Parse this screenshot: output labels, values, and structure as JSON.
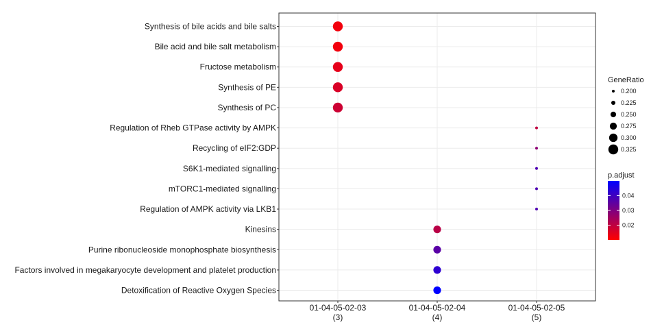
{
  "chart_data": {
    "type": "scatter",
    "title": "",
    "xlabel": "",
    "ylabel": "",
    "categories_x": [
      {
        "line1": "01-04-05-02-03",
        "line2": "(3)"
      },
      {
        "line1": "01-04-05-02-04",
        "line2": "(4)"
      },
      {
        "line1": "01-04-05-02-05",
        "line2": "(5)"
      }
    ],
    "categories_y": [
      "Synthesis of bile acids and bile salts",
      "Bile acid and bile salt metabolism",
      "Fructose metabolism",
      "Synthesis of PE",
      "Synthesis of PC",
      "Regulation of Rheb GTPase activity by AMPK",
      "Recycling of eIF2:GDP",
      "S6K1-mediated signalling",
      "mTORC1-mediated signalling",
      "Regulation of AMPK activity via LKB1",
      "Kinesins",
      "Purine ribonucleoside monophosphate biosynthesis",
      "Factors involved in megakaryocyte development and platelet production",
      "Detoxification of Reactive Oxygen Species"
    ],
    "points": [
      {
        "x": 0,
        "y": 0,
        "gene_ratio": 0.333,
        "p_adjust": 0.012
      },
      {
        "x": 0,
        "y": 1,
        "gene_ratio": 0.333,
        "p_adjust": 0.012
      },
      {
        "x": 0,
        "y": 2,
        "gene_ratio": 0.333,
        "p_adjust": 0.014
      },
      {
        "x": 0,
        "y": 3,
        "gene_ratio": 0.333,
        "p_adjust": 0.016
      },
      {
        "x": 0,
        "y": 4,
        "gene_ratio": 0.333,
        "p_adjust": 0.018
      },
      {
        "x": 2,
        "y": 5,
        "gene_ratio": 0.2,
        "p_adjust": 0.02
      },
      {
        "x": 2,
        "y": 6,
        "gene_ratio": 0.2,
        "p_adjust": 0.028
      },
      {
        "x": 2,
        "y": 7,
        "gene_ratio": 0.2,
        "p_adjust": 0.038
      },
      {
        "x": 2,
        "y": 8,
        "gene_ratio": 0.2,
        "p_adjust": 0.038
      },
      {
        "x": 2,
        "y": 9,
        "gene_ratio": 0.2,
        "p_adjust": 0.038
      },
      {
        "x": 1,
        "y": 10,
        "gene_ratio": 0.286,
        "p_adjust": 0.021
      },
      {
        "x": 1,
        "y": 11,
        "gene_ratio": 0.286,
        "p_adjust": 0.036
      },
      {
        "x": 1,
        "y": 12,
        "gene_ratio": 0.286,
        "p_adjust": 0.043
      },
      {
        "x": 1,
        "y": 13,
        "gene_ratio": 0.286,
        "p_adjust": 0.05
      }
    ],
    "legend_size": {
      "title": "GeneRatio",
      "values": [
        0.2,
        0.225,
        0.25,
        0.275,
        0.3,
        0.325
      ],
      "labels": [
        "0.200",
        "0.225",
        "0.250",
        "0.275",
        "0.300",
        "0.325"
      ]
    },
    "legend_color": {
      "title": "p.adjust",
      "range": [
        0.01,
        0.05
      ],
      "ticks": [
        0.04,
        0.03,
        0.02
      ],
      "tick_labels": [
        "0.04",
        "0.03",
        "0.02"
      ],
      "low_color": "#ff0000",
      "high_color": "#0000ff"
    },
    "grid": true,
    "legend_position": "right"
  }
}
